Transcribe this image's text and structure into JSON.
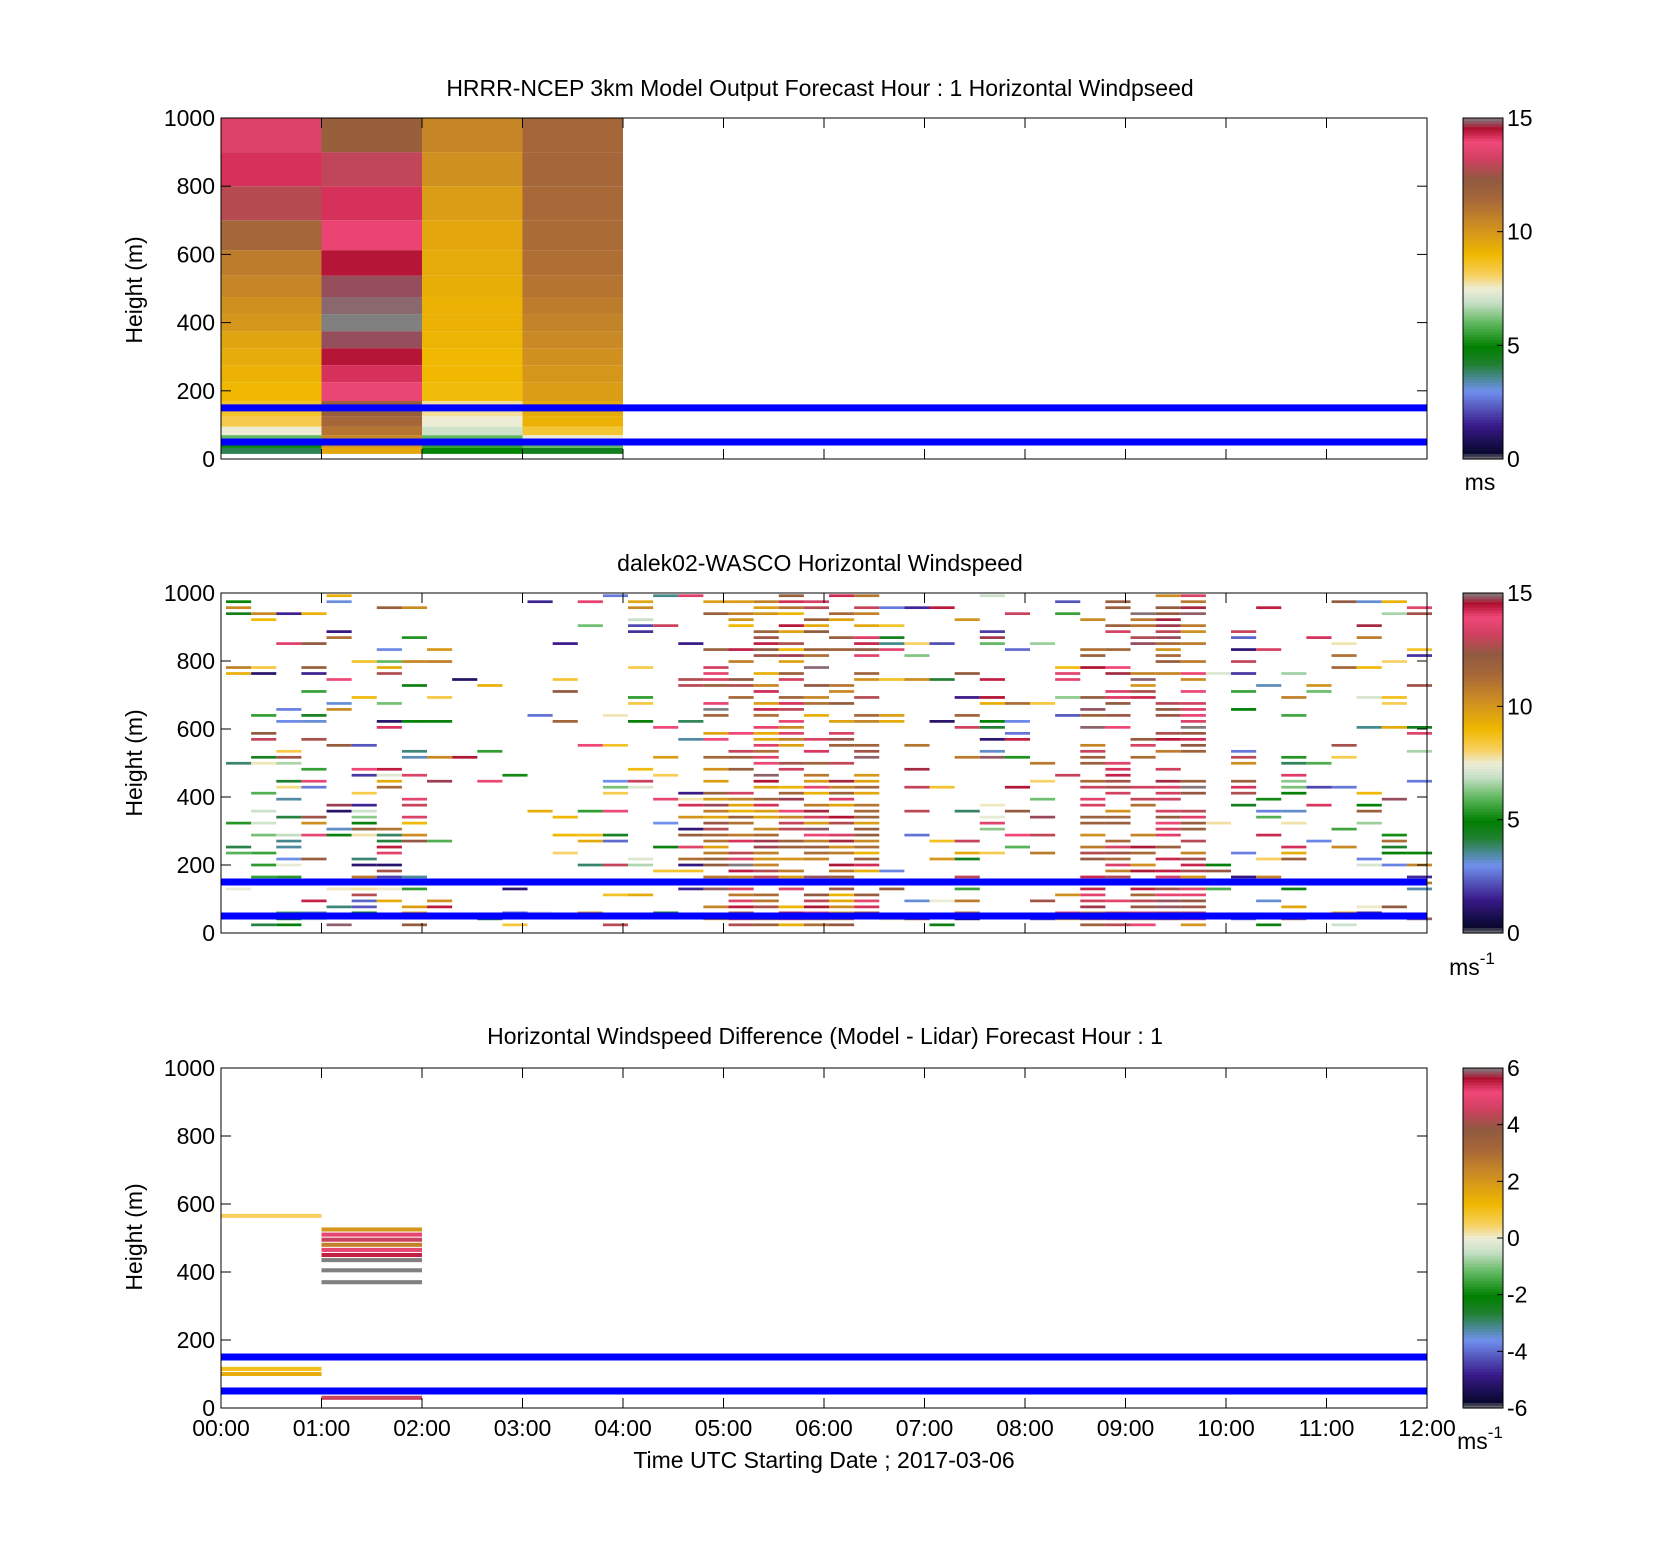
{
  "figure": {
    "panels": [
      {
        "id": "model",
        "title": "HRRR-NCEP 3km Model Output   Forecast Hour : 1 Horizontal Windpseed",
        "ylabel": "Height (m)",
        "colorbar_label": "ms",
        "colorbar_superscript": "",
        "colorbar_ticks": [
          "0",
          "5",
          "10",
          "15"
        ]
      },
      {
        "id": "lidar",
        "title": "dalek02-WASCO  Horizontal Windspeed",
        "ylabel": "Height (m)",
        "colorbar_label": "ms",
        "colorbar_superscript": "-1",
        "colorbar_ticks": [
          "0",
          "5",
          "10",
          "15"
        ]
      },
      {
        "id": "difference",
        "title": "Horizontal Windspeed Difference (Model - Lidar) Forecast Hour : 1",
        "ylabel": "Height (m)",
        "colorbar_label": "ms",
        "colorbar_superscript": "-1",
        "colorbar_ticks": [
          "-6",
          "-4",
          "-2",
          "0",
          "2",
          "4",
          "6"
        ]
      }
    ],
    "xlabel": "Time UTC  Starting Date ; 2017-03-06",
    "x_tick_labels": [
      "00:00",
      "01:00",
      "02:00",
      "03:00",
      "04:00",
      "05:00",
      "06:00",
      "07:00",
      "08:00",
      "09:00",
      "10:00",
      "11:00",
      "12:00"
    ],
    "y_tick_labels": [
      "0",
      "200",
      "400",
      "600",
      "800",
      "1000"
    ]
  },
  "chart_data": [
    {
      "type": "heatmap",
      "title": "HRRR-NCEP 3km Model Output   Forecast Hour : 1 Horizontal Windpseed",
      "xlabel": "",
      "ylabel": "Height (m)",
      "xlim": [
        0,
        12
      ],
      "ylim": [
        0,
        1000
      ],
      "clim": [
        0,
        15
      ],
      "colorbar_unit": "ms",
      "horizontal_reference_lines_m": [
        50,
        150
      ],
      "reference_line_color": "#0000ff",
      "columns": [
        {
          "t_start": 0,
          "t_end": 1,
          "cells": [
            [
              950,
              13.5
            ],
            [
              850,
              14.2
            ],
            [
              750,
              12.8
            ],
            [
              650,
              11.5
            ],
            [
              575,
              10.8
            ],
            [
              500,
              10.5
            ],
            [
              450,
              10.2
            ],
            [
              400,
              10.0
            ],
            [
              350,
              9.6
            ],
            [
              300,
              9.4
            ],
            [
              250,
              9.2
            ],
            [
              200,
              9.0
            ],
            [
              140,
              8.6
            ],
            [
              110,
              8.3
            ],
            [
              80,
              7.5
            ],
            [
              60,
              6.0
            ],
            [
              40,
              5.0
            ],
            [
              25,
              4.0
            ]
          ]
        },
        {
          "t_start": 1,
          "t_end": 2,
          "cells": [
            [
              950,
              12.0
            ],
            [
              850,
              13.0
            ],
            [
              750,
              14.2
            ],
            [
              650,
              14.0
            ],
            [
              575,
              14.5
            ],
            [
              500,
              14.8
            ],
            [
              450,
              14.9
            ],
            [
              400,
              15.0
            ],
            [
              350,
              14.8
            ],
            [
              300,
              14.5
            ],
            [
              250,
              14.2
            ],
            [
              200,
              13.8
            ],
            [
              140,
              12.0
            ],
            [
              110,
              11.5
            ],
            [
              80,
              11.0
            ],
            [
              60,
              10.5
            ],
            [
              40,
              10.0
            ],
            [
              25,
              9.5
            ]
          ]
        },
        {
          "t_start": 2,
          "t_end": 3,
          "cells": [
            [
              950,
              10.5
            ],
            [
              850,
              10.2
            ],
            [
              750,
              9.8
            ],
            [
              650,
              9.5
            ],
            [
              575,
              9.4
            ],
            [
              500,
              9.3
            ],
            [
              450,
              9.2
            ],
            [
              400,
              9.2
            ],
            [
              350,
              9.1
            ],
            [
              300,
              9.0
            ],
            [
              250,
              9.0
            ],
            [
              200,
              8.9
            ],
            [
              140,
              7.8
            ],
            [
              110,
              7.5
            ],
            [
              80,
              7.0
            ],
            [
              60,
              6.0
            ],
            [
              40,
              5.5
            ],
            [
              25,
              5.0
            ]
          ]
        },
        {
          "t_start": 3,
          "t_end": 4,
          "cells": [
            [
              950,
              11.5
            ],
            [
              850,
              11.5
            ],
            [
              750,
              11.4
            ],
            [
              650,
              11.3
            ],
            [
              575,
              11.2
            ],
            [
              500,
              11.0
            ],
            [
              450,
              10.8
            ],
            [
              400,
              10.6
            ],
            [
              350,
              10.4
            ],
            [
              300,
              10.2
            ],
            [
              250,
              10.0
            ],
            [
              200,
              9.8
            ],
            [
              140,
              9.4
            ],
            [
              110,
              9.2
            ],
            [
              80,
              8.5
            ],
            [
              60,
              7.5
            ],
            [
              40,
              6.0
            ],
            [
              25,
              4.5
            ]
          ]
        }
      ]
    },
    {
      "type": "heatmap",
      "title": "dalek02-WASCO  Horizontal Windspeed",
      "xlabel": "",
      "ylabel": "Height (m)",
      "xlim": [
        0,
        12
      ],
      "ylim": [
        0,
        1000
      ],
      "clim": [
        0,
        15
      ],
      "colorbar_unit": "ms^-1",
      "horizontal_reference_lines_m": [
        50,
        150
      ],
      "reference_line_color": "#0000ff",
      "note": "Scattered lidar range-gate returns; values estimated from colors, many gaps (white = no data)."
    },
    {
      "type": "heatmap",
      "title": "Horizontal Windspeed Difference (Model - Lidar) Forecast Hour : 1",
      "xlabel": "Time UTC  Starting Date ; 2017-03-06",
      "ylabel": "Height (m)",
      "xlim": [
        0,
        12
      ],
      "ylim": [
        0,
        1000
      ],
      "clim": [
        -6,
        6
      ],
      "colorbar_unit": "ms^-1",
      "horizontal_reference_lines_m": [
        50,
        150
      ],
      "reference_line_color": "#0000ff",
      "cells": [
        {
          "t_start": 0,
          "t_end": 1,
          "height": 565,
          "value": 0.5
        },
        {
          "t_start": 0,
          "t_end": 1,
          "height": 115,
          "value": 1.0
        },
        {
          "t_start": 0,
          "t_end": 1,
          "height": 100,
          "value": 1.5
        },
        {
          "t_start": 1,
          "t_end": 2,
          "height": 525,
          "value": 2.0
        },
        {
          "t_start": 1,
          "t_end": 2,
          "height": 510,
          "value": 5.0
        },
        {
          "t_start": 1,
          "t_end": 2,
          "height": 495,
          "value": 4.5
        },
        {
          "t_start": 1,
          "t_end": 2,
          "height": 480,
          "value": 2.5
        },
        {
          "t_start": 1,
          "t_end": 2,
          "height": 465,
          "value": 5.0
        },
        {
          "t_start": 1,
          "t_end": 2,
          "height": 450,
          "value": 5.5
        },
        {
          "t_start": 1,
          "t_end": 2,
          "height": 435,
          "value": 6.0
        },
        {
          "t_start": 1,
          "t_end": 2,
          "height": 405,
          "value": 6.0
        },
        {
          "t_start": 1,
          "t_end": 2,
          "height": 370,
          "value": 6.0
        },
        {
          "t_start": 1,
          "t_end": 2,
          "height": 30,
          "value": 4.5
        }
      ]
    }
  ]
}
